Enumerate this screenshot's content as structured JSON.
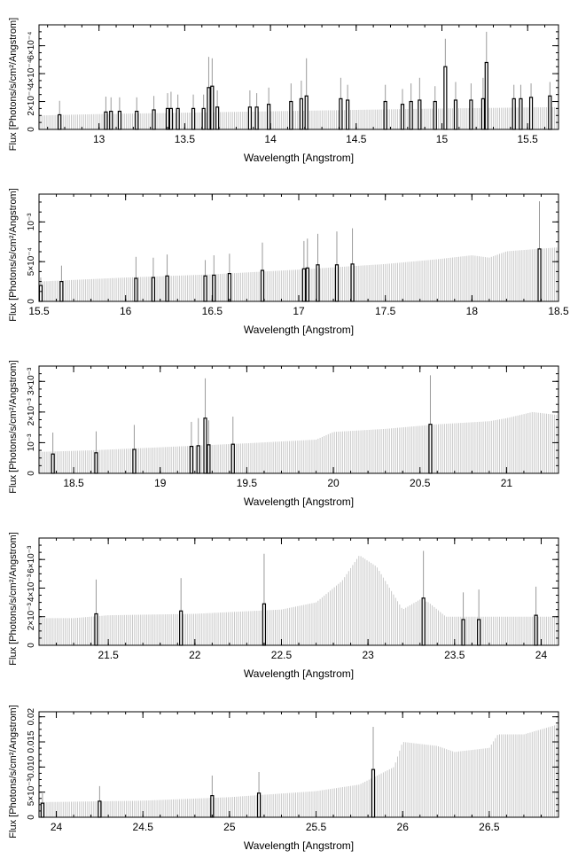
{
  "colors": {
    "background": "#ffffff",
    "axis": "#000000",
    "line": "#000000",
    "spectrum": "#c8c8c8"
  },
  "chart_data": [
    {
      "type": "line",
      "panel": 1,
      "xlabel": "Wavelength [Angstrom]",
      "ylabel": "Flux [Photons/s/cm²/Angstrom]",
      "xlim": [
        12.65,
        15.68
      ],
      "ylim": [
        0,
        0.00075
      ],
      "xticks": [
        13,
        13.5,
        14,
        14.5,
        15,
        15.5
      ],
      "xtick_labels": [
        "13",
        "13.5",
        "14",
        "14.5",
        "15",
        "15.5"
      ],
      "yticks": [
        0,
        0.0002,
        0.0004,
        0.0006
      ],
      "ytick_labels": [
        "0",
        "2×10⁻⁴",
        "4×10⁻⁴",
        "6×10⁻⁴"
      ],
      "continuum": [
        [
          12.65,
          0.0001
        ],
        [
          13.0,
          0.00011
        ],
        [
          13.5,
          0.00012
        ],
        [
          14.0,
          0.00013
        ],
        [
          14.5,
          0.00014
        ],
        [
          15.0,
          0.00015
        ],
        [
          15.68,
          0.00016
        ]
      ],
      "lines": [
        {
          "x": 12.77,
          "y": 0.000105,
          "err": 0.0001
        },
        {
          "x": 13.04,
          "y": 0.000125,
          "err": 0.00011
        },
        {
          "x": 13.07,
          "y": 0.00013,
          "err": 0.0001
        },
        {
          "x": 13.12,
          "y": 0.00013,
          "err": 0.0001
        },
        {
          "x": 13.22,
          "y": 0.00013,
          "err": 0.0001
        },
        {
          "x": 13.32,
          "y": 0.00014,
          "err": 0.0001
        },
        {
          "x": 13.4,
          "y": 0.00015,
          "err": 0.00011
        },
        {
          "x": 13.42,
          "y": 0.00015,
          "err": 0.00012
        },
        {
          "x": 13.46,
          "y": 0.00015,
          "err": 0.0001
        },
        {
          "x": 13.55,
          "y": 0.00015,
          "err": 0.0001
        },
        {
          "x": 13.61,
          "y": 0.00015,
          "err": 0.0001
        },
        {
          "x": 13.64,
          "y": 0.0003,
          "err": 0.00022
        },
        {
          "x": 13.66,
          "y": 0.00031,
          "err": 0.0002
        },
        {
          "x": 13.69,
          "y": 0.00016,
          "err": 0.00012
        },
        {
          "x": 13.88,
          "y": 0.00016,
          "err": 0.00012
        },
        {
          "x": 13.92,
          "y": 0.00016,
          "err": 0.0001
        },
        {
          "x": 13.99,
          "y": 0.00018,
          "err": 0.00012
        },
        {
          "x": 14.12,
          "y": 0.0002,
          "err": 0.00013
        },
        {
          "x": 14.18,
          "y": 0.00022,
          "err": 0.00013
        },
        {
          "x": 14.21,
          "y": 0.00024,
          "err": 0.00027
        },
        {
          "x": 14.41,
          "y": 0.00022,
          "err": 0.00015
        },
        {
          "x": 14.45,
          "y": 0.00021,
          "err": 0.00011
        },
        {
          "x": 14.67,
          "y": 0.0002,
          "err": 0.00012
        },
        {
          "x": 14.77,
          "y": 0.00018,
          "err": 0.00011
        },
        {
          "x": 14.82,
          "y": 0.0002,
          "err": 0.00013
        },
        {
          "x": 14.87,
          "y": 0.00021,
          "err": 0.00016
        },
        {
          "x": 14.96,
          "y": 0.0002,
          "err": 0.00011
        },
        {
          "x": 15.02,
          "y": 0.00045,
          "err": 0.0002
        },
        {
          "x": 15.08,
          "y": 0.00021,
          "err": 0.00013
        },
        {
          "x": 15.17,
          "y": 0.00021,
          "err": 0.00012
        },
        {
          "x": 15.24,
          "y": 0.00022,
          "err": 0.00015
        },
        {
          "x": 15.26,
          "y": 0.00048,
          "err": 0.00022
        },
        {
          "x": 15.42,
          "y": 0.00022,
          "err": 0.0001
        },
        {
          "x": 15.46,
          "y": 0.00022,
          "err": 0.0001
        },
        {
          "x": 15.52,
          "y": 0.00023,
          "err": 0.0001
        },
        {
          "x": 15.63,
          "y": 0.00024,
          "err": 0.0001
        }
      ]
    },
    {
      "type": "line",
      "panel": 2,
      "xlabel": "Wavelength [Angstrom]",
      "ylabel": "Flux [Photons/s/cm²/Angstrom]",
      "xlim": [
        15.5,
        18.5
      ],
      "ylim": [
        0,
        0.00135
      ],
      "xticks": [
        15.5,
        16,
        16.5,
        17,
        17.5,
        18,
        18.5
      ],
      "xtick_labels": [
        "15.5",
        "16",
        "16.5",
        "17",
        "17.5",
        "18",
        "18.5"
      ],
      "yticks": [
        0,
        0.0005,
        0.001
      ],
      "ytick_labels": [
        "0",
        "5×10⁻⁴",
        "10⁻³"
      ],
      "continuum": [
        [
          15.5,
          0.00025
        ],
        [
          16.0,
          0.0003
        ],
        [
          16.5,
          0.00034
        ],
        [
          17.0,
          0.0004
        ],
        [
          17.5,
          0.00047
        ],
        [
          17.8,
          0.00053
        ],
        [
          18.0,
          0.00058
        ],
        [
          18.1,
          0.00055
        ],
        [
          18.2,
          0.00063
        ],
        [
          18.5,
          0.00068
        ]
      ],
      "lines": [
        {
          "x": 15.51,
          "y": 0.0002,
          "err": 0.0001
        },
        {
          "x": 15.63,
          "y": 0.00025,
          "err": 0.0002
        },
        {
          "x": 16.06,
          "y": 0.00029,
          "err": 0.00027
        },
        {
          "x": 16.16,
          "y": 0.0003,
          "err": 0.00025
        },
        {
          "x": 16.24,
          "y": 0.00032,
          "err": 0.00027
        },
        {
          "x": 16.46,
          "y": 0.00032,
          "err": 0.0002
        },
        {
          "x": 16.51,
          "y": 0.00033,
          "err": 0.00025
        },
        {
          "x": 16.6,
          "y": 0.00035,
          "err": 0.00025
        },
        {
          "x": 16.79,
          "y": 0.00039,
          "err": 0.00035
        },
        {
          "x": 17.03,
          "y": 0.00041,
          "err": 0.00035
        },
        {
          "x": 17.05,
          "y": 0.00042,
          "err": 0.00037
        },
        {
          "x": 17.11,
          "y": 0.00046,
          "err": 0.00039
        },
        {
          "x": 17.22,
          "y": 0.00046,
          "err": 0.00042
        },
        {
          "x": 17.31,
          "y": 0.00047,
          "err": 0.00045
        },
        {
          "x": 18.39,
          "y": 0.00066,
          "err": 0.0006
        }
      ]
    },
    {
      "type": "line",
      "panel": 3,
      "xlabel": "Wavelength [Angstrom]",
      "ylabel": "Flux [Photons/s/cm²/Angstrom]",
      "xlim": [
        18.3,
        21.3
      ],
      "ylim": [
        0,
        0.0035
      ],
      "xticks": [
        18.5,
        19,
        19.5,
        20,
        20.5,
        21
      ],
      "xtick_labels": [
        "18.5",
        "19",
        "19.5",
        "20",
        "20.5",
        "21"
      ],
      "yticks": [
        0,
        0.001,
        0.002,
        0.003
      ],
      "ytick_labels": [
        "0",
        "10⁻³",
        "2×10⁻³",
        "3×10⁻³"
      ],
      "continuum": [
        [
          18.3,
          0.0007
        ],
        [
          18.6,
          0.00075
        ],
        [
          19.0,
          0.00085
        ],
        [
          19.5,
          0.00098
        ],
        [
          19.9,
          0.0011
        ],
        [
          20.0,
          0.00135
        ],
        [
          20.3,
          0.00145
        ],
        [
          20.6,
          0.0016
        ],
        [
          20.9,
          0.0017
        ],
        [
          21.0,
          0.0018
        ],
        [
          21.15,
          0.002
        ],
        [
          21.3,
          0.0019
        ]
      ],
      "lines": [
        {
          "x": 18.38,
          "y": 0.00063,
          "err": 0.0007
        },
        {
          "x": 18.63,
          "y": 0.00067,
          "err": 0.0007
        },
        {
          "x": 18.85,
          "y": 0.00078,
          "err": 0.0008
        },
        {
          "x": 19.18,
          "y": 0.00088,
          "err": 0.0008
        },
        {
          "x": 19.22,
          "y": 0.0009,
          "err": 0.0009
        },
        {
          "x": 19.26,
          "y": 0.0018,
          "err": 0.0013
        },
        {
          "x": 19.28,
          "y": 0.00093,
          "err": 0.0008
        },
        {
          "x": 19.42,
          "y": 0.00095,
          "err": 0.0009
        },
        {
          "x": 20.56,
          "y": 0.0016,
          "err": 0.0016
        }
      ]
    },
    {
      "type": "line",
      "panel": 4,
      "xlabel": "Wavelength [Angstrom]",
      "ylabel": "Flux [Photons/s/cm²/Angstrom]",
      "xlim": [
        21.1,
        24.1
      ],
      "ylim": [
        0,
        0.0075
      ],
      "xticks": [
        21.5,
        22,
        22.5,
        23,
        23.5,
        24
      ],
      "xtick_labels": [
        "21.5",
        "22",
        "22.5",
        "23",
        "23.5",
        "24"
      ],
      "yticks": [
        0,
        0.002,
        0.004,
        0.006
      ],
      "ytick_labels": [
        "0",
        "2×10⁻³",
        "4×10⁻³",
        "6×10⁻³"
      ],
      "continuum": [
        [
          21.1,
          0.0019
        ],
        [
          21.3,
          0.0019
        ],
        [
          21.5,
          0.0021
        ],
        [
          22.0,
          0.0022
        ],
        [
          22.5,
          0.0025
        ],
        [
          22.7,
          0.003
        ],
        [
          22.85,
          0.0045
        ],
        [
          22.95,
          0.0063
        ],
        [
          23.05,
          0.0055
        ],
        [
          23.2,
          0.0025
        ],
        [
          23.3,
          0.0032
        ],
        [
          23.35,
          0.003
        ],
        [
          23.45,
          0.002
        ],
        [
          24.1,
          0.002
        ]
      ],
      "lines": [
        {
          "x": 21.43,
          "y": 0.0022,
          "err": 0.0024
        },
        {
          "x": 21.92,
          "y": 0.0024,
          "err": 0.0023
        },
        {
          "x": 22.4,
          "y": 0.0029,
          "err": 0.0035
        },
        {
          "x": 23.32,
          "y": 0.0033,
          "err": 0.0033
        },
        {
          "x": 23.55,
          "y": 0.0018,
          "err": 0.0019
        },
        {
          "x": 23.64,
          "y": 0.0018,
          "err": 0.0021
        },
        {
          "x": 23.97,
          "y": 0.0021,
          "err": 0.002
        }
      ]
    },
    {
      "type": "line",
      "panel": 5,
      "xlabel": "Wavelength [Angstrom]",
      "ylabel": "Flux [Photons/s/cm²/Angstrom]",
      "xlim": [
        23.9,
        26.9
      ],
      "ylim": [
        0,
        0.021
      ],
      "xticks": [
        24,
        24.5,
        25,
        25.5,
        26,
        26.5
      ],
      "xtick_labels": [
        "24",
        "24.5",
        "25",
        "25.5",
        "26",
        "26.5"
      ],
      "yticks": [
        0,
        0.005,
        0.01,
        0.015,
        0.02
      ],
      "ytick_labels": [
        "0",
        "5×10⁻³",
        "0.010",
        "0.015",
        "0.02"
      ],
      "continuum": [
        [
          23.9,
          0.003
        ],
        [
          24.5,
          0.0033
        ],
        [
          25.0,
          0.004
        ],
        [
          25.5,
          0.0052
        ],
        [
          25.75,
          0.0065
        ],
        [
          25.95,
          0.01
        ],
        [
          26.0,
          0.015
        ],
        [
          26.2,
          0.0142
        ],
        [
          26.3,
          0.013
        ],
        [
          26.5,
          0.0138
        ],
        [
          26.55,
          0.0165
        ],
        [
          26.7,
          0.0165
        ],
        [
          26.9,
          0.0185
        ]
      ],
      "lines": [
        {
          "x": 23.92,
          "y": 0.0028,
          "err": 0.002
        },
        {
          "x": 24.25,
          "y": 0.0032,
          "err": 0.003
        },
        {
          "x": 24.9,
          "y": 0.0043,
          "err": 0.004
        },
        {
          "x": 25.17,
          "y": 0.0048,
          "err": 0.0042
        },
        {
          "x": 25.83,
          "y": 0.0095,
          "err": 0.0085
        }
      ]
    }
  ]
}
